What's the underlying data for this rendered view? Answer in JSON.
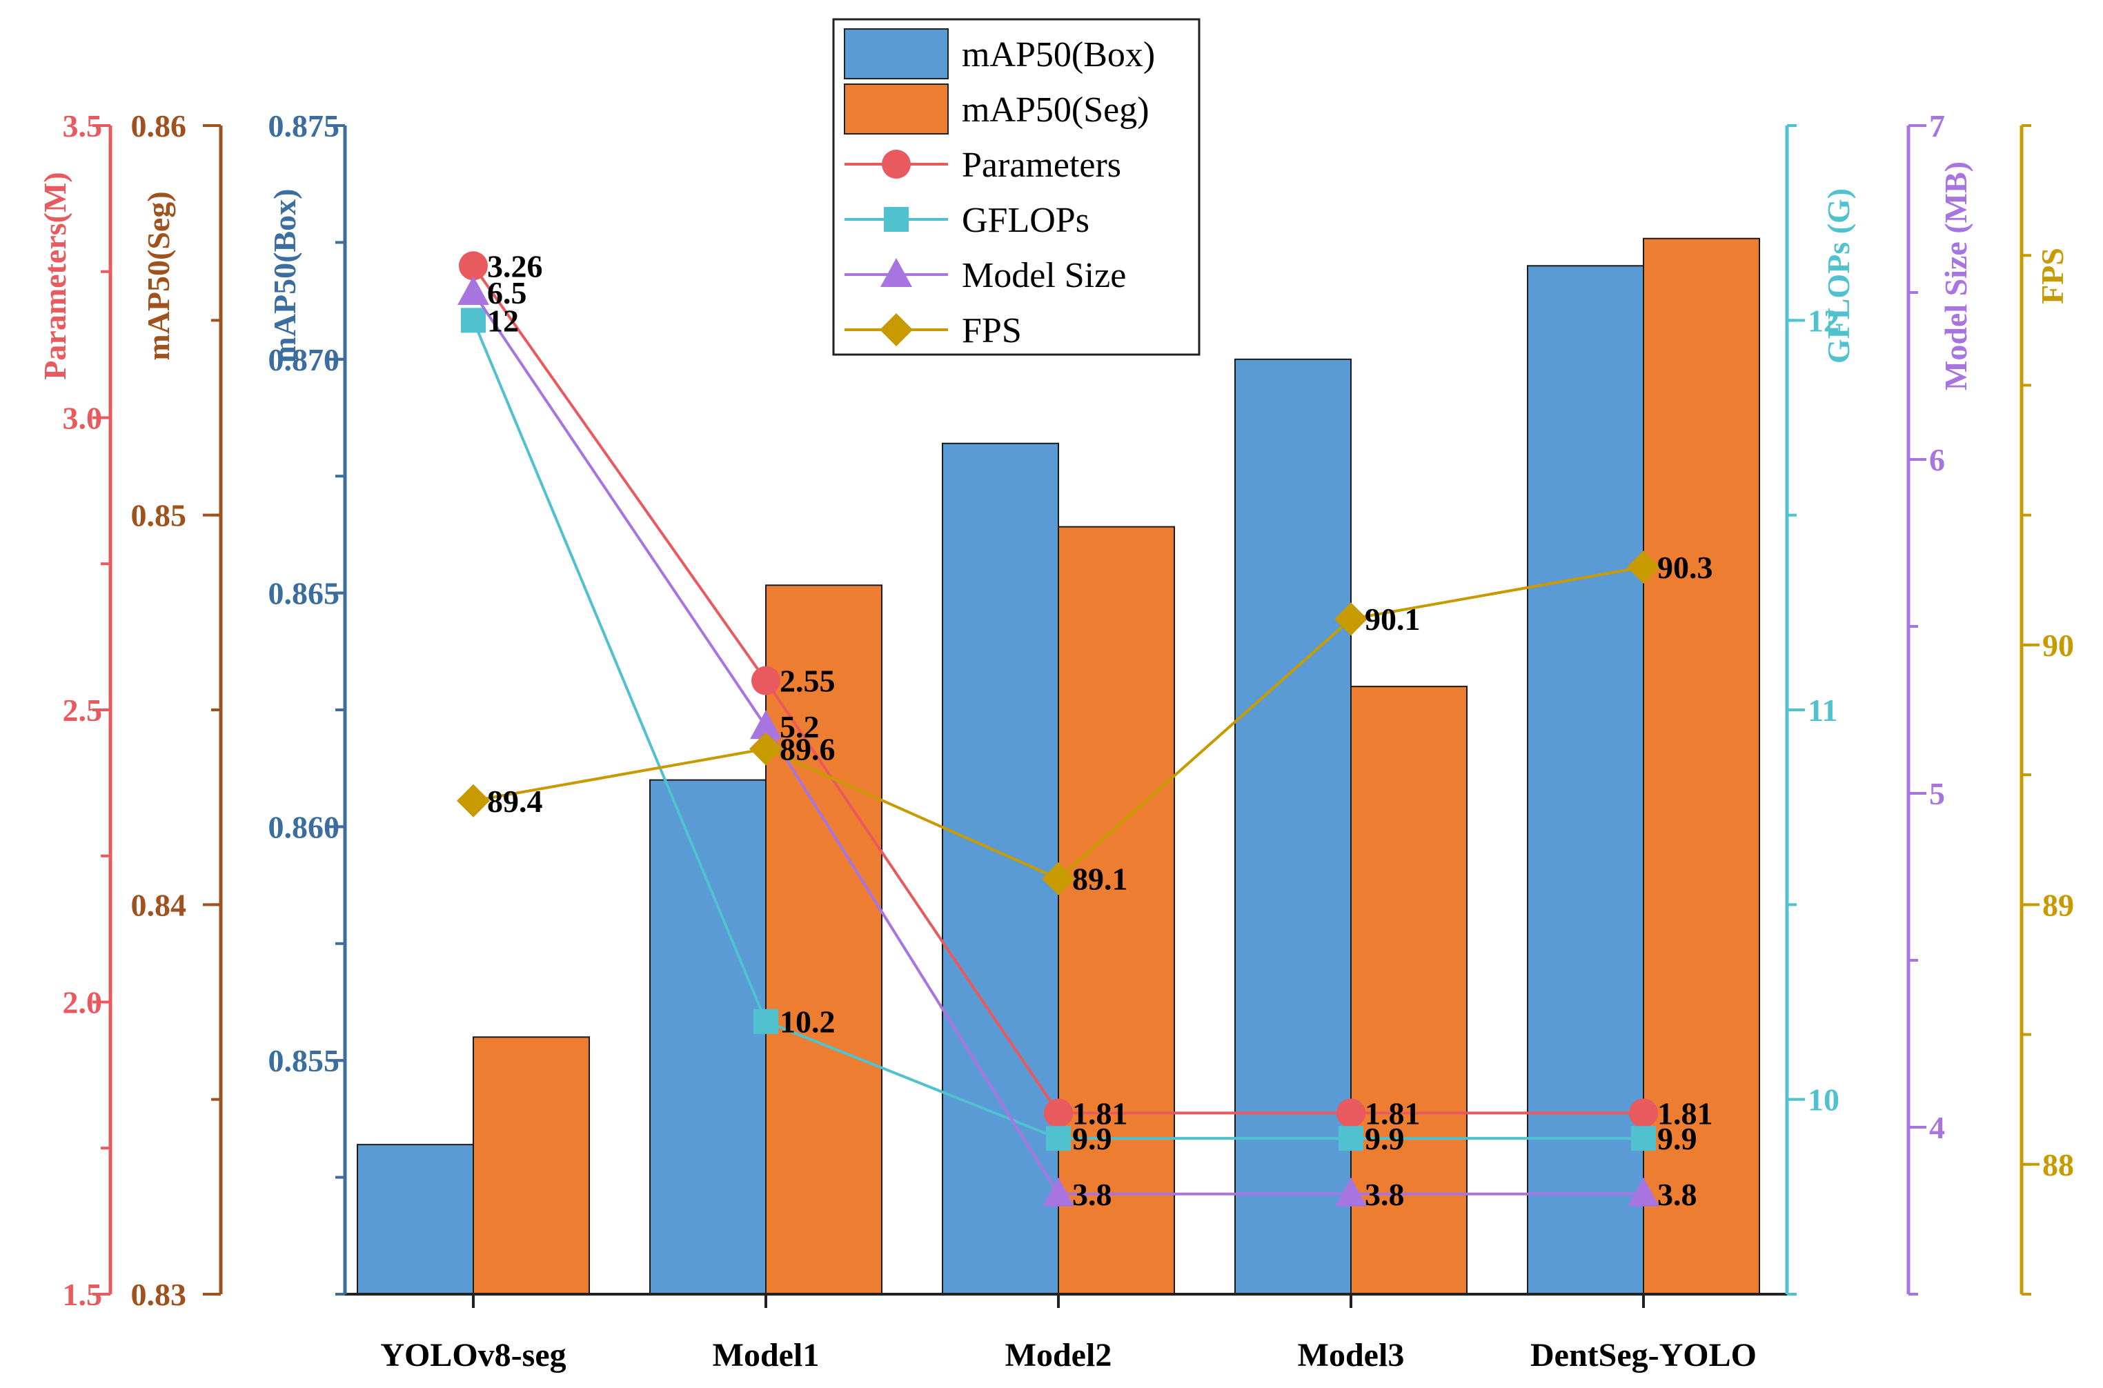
{
  "chart_data": {
    "type": "bar",
    "categories": [
      "YOLOv8-seg",
      "Model1",
      "Model2",
      "Model3",
      "DentSeg-YOLO"
    ],
    "bar_series": [
      {
        "name": "mAP50(Box)",
        "values": [
          0.8532,
          0.861,
          0.8682,
          0.87,
          0.872
        ],
        "color": "#5b9bd5",
        "axis": "box"
      },
      {
        "name": "mAP50(Seg)",
        "values": [
          0.8366,
          0.8482,
          0.8497,
          0.8456,
          0.8571
        ],
        "color": "#ed7d31",
        "axis": "seg"
      }
    ],
    "line_series": [
      {
        "name": "Parameters",
        "values": [
          3.26,
          2.55,
          1.81,
          1.81,
          1.81
        ],
        "labels": [
          "3.26",
          "2.55",
          "1.81",
          "1.81",
          "1.81"
        ],
        "color": "#e85a5e",
        "marker": "circle",
        "axis": "params"
      },
      {
        "name": "GFLOPs",
        "values": [
          12,
          10.2,
          9.9,
          9.9,
          9.9
        ],
        "labels": [
          "12",
          "10.2",
          "9.9",
          "9.9",
          "9.9"
        ],
        "color": "#4fc1cf",
        "marker": "square",
        "axis": "gflops"
      },
      {
        "name": "Model Size",
        "values": [
          6.5,
          5.2,
          3.8,
          3.8,
          3.8
        ],
        "labels": [
          "6.5",
          "5.2",
          "3.8",
          "3.8",
          "3.8"
        ],
        "color": "#a874e0",
        "marker": "triangle",
        "axis": "size"
      },
      {
        "name": "FPS",
        "values": [
          89.4,
          89.6,
          89.1,
          90.1,
          90.3
        ],
        "labels": [
          "89.4",
          "89.6",
          "89.1",
          "90.1",
          "90.3"
        ],
        "color": "#c79a00",
        "marker": "diamond",
        "axis": "fps"
      }
    ],
    "axes": {
      "params": {
        "title": "Parameters(M)",
        "range": [
          1.5,
          3.5
        ],
        "ticks": [
          "1.5",
          "2.0",
          "2.5",
          "3.0",
          "3.5"
        ],
        "color": "#e85a5e",
        "side": "left"
      },
      "seg": {
        "title": "mAP50(Seg)",
        "range": [
          0.83,
          0.86
        ],
        "ticks": [
          "0.83",
          "0.84",
          "0.85",
          "0.86"
        ],
        "color": "#a0521e",
        "side": "left"
      },
      "box": {
        "title": "mAP50(Box)",
        "range": [
          0.85,
          0.875
        ],
        "ticks": [
          "0.855",
          "0.860",
          "0.865",
          "0.870",
          "0.875"
        ],
        "color": "#3b6e9e",
        "side": "left"
      },
      "gflops": {
        "title": "GFLOPs (G)",
        "range": [
          9.5,
          12.5
        ],
        "ticks": [
          "10",
          "11",
          "12"
        ],
        "color": "#4fc1cf",
        "side": "right"
      },
      "size": {
        "title": "Model Size (MB)",
        "range": [
          3.5,
          7
        ],
        "ticks": [
          "4",
          "5",
          "6",
          "7"
        ],
        "color": "#a874e0",
        "side": "right"
      },
      "fps": {
        "title": "FPS",
        "range": [
          87.5,
          92
        ],
        "ticks": [
          "88",
          "89",
          "90"
        ],
        "color": "#c79a00",
        "side": "right"
      }
    },
    "legend_position": "top-center"
  }
}
